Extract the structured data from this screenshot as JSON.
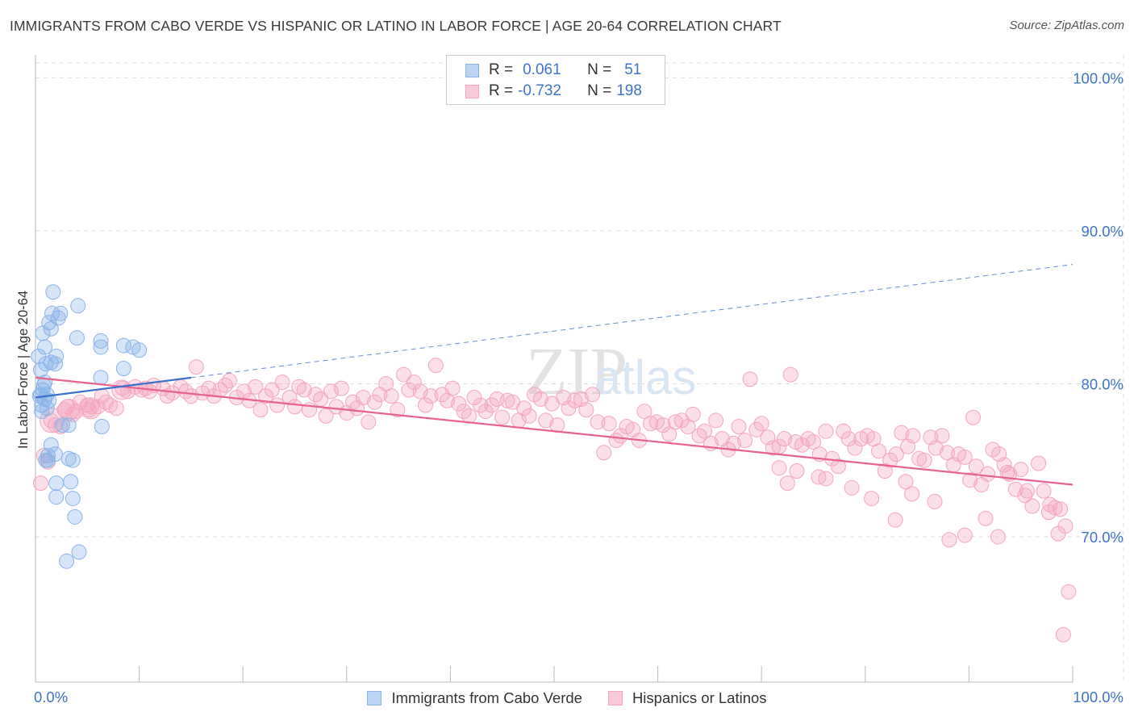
{
  "title": "IMMIGRANTS FROM CABO VERDE VS HISPANIC OR LATINO IN LABOR FORCE | AGE 20-64 CORRELATION CHART",
  "source": "Source: ZipAtlas.com",
  "watermark": "ZIPatlas",
  "colors": {
    "blue": "#8ab4e8",
    "blue_line": "#3a72cc",
    "pink": "#f4a6bf",
    "pink_line": "#e8628f",
    "axis_text": "#3f74c9",
    "grid": "#dddddd"
  },
  "legend": {
    "rows": [
      {
        "r_label": "R =",
        "r_value": "0.061",
        "n_label": "N =",
        "n_value": "51"
      },
      {
        "r_label": "R =",
        "r_value": "-0.732",
        "n_label": "N =",
        "n_value": "198"
      }
    ]
  },
  "bottom_legend": [
    "Immigrants from Cabo Verde",
    "Hispanics or Latinos"
  ],
  "chart_data": {
    "type": "scatter",
    "title": "IMMIGRANTS FROM CABO VERDE VS HISPANIC OR LATINO IN LABOR FORCE | AGE 20-64 CORRELATION CHART",
    "xlabel": "",
    "ylabel": "In Labor Force | Age 20-64",
    "xlim": [
      0,
      100
    ],
    "ylim": [
      60.5,
      101.5
    ],
    "x_tick_labels": [
      "0.0%",
      "100.0%"
    ],
    "y_ticks": [
      70,
      80,
      90,
      100
    ],
    "y_tick_labels": [
      "70.0%",
      "80.0%",
      "90.0%",
      "100.0%"
    ],
    "series": [
      {
        "name": "Immigrants from Cabo Verde",
        "r": 0.061,
        "n": 51,
        "trend_solid": [
          [
            0,
            79.1
          ],
          [
            15,
            80.4
          ]
        ],
        "trend_dashed": [
          [
            15,
            80.4
          ],
          [
            100,
            87.8
          ]
        ],
        "points": [
          [
            0.3,
            81.8
          ],
          [
            0.5,
            80.9
          ],
          [
            0.7,
            79.6
          ],
          [
            0.8,
            79.9
          ],
          [
            0.5,
            79.3
          ],
          [
            0.9,
            79.0
          ],
          [
            1.1,
            78.4
          ],
          [
            0.6,
            78.6
          ],
          [
            1.0,
            81.3
          ],
          [
            1.5,
            81.4
          ],
          [
            1.9,
            81.3
          ],
          [
            2.0,
            81.8
          ],
          [
            0.9,
            82.4
          ],
          [
            0.7,
            83.3
          ],
          [
            1.5,
            83.6
          ],
          [
            1.3,
            84.0
          ],
          [
            1.6,
            84.6
          ],
          [
            2.2,
            84.3
          ],
          [
            2.4,
            84.6
          ],
          [
            1.7,
            86.0
          ],
          [
            4.1,
            85.1
          ],
          [
            4.0,
            83.0
          ],
          [
            6.3,
            82.8
          ],
          [
            6.3,
            82.4
          ],
          [
            8.5,
            82.5
          ],
          [
            9.4,
            82.4
          ],
          [
            10.0,
            82.2
          ],
          [
            8.5,
            81.0
          ],
          [
            6.3,
            80.4
          ],
          [
            1.5,
            76.0
          ],
          [
            1.9,
            75.4
          ],
          [
            1.2,
            75.3
          ],
          [
            1.2,
            75.0
          ],
          [
            2.6,
            77.3
          ],
          [
            3.2,
            77.3
          ],
          [
            6.4,
            77.2
          ],
          [
            1.0,
            75.0
          ],
          [
            3.2,
            75.1
          ],
          [
            3.6,
            75.0
          ],
          [
            2.0,
            73.5
          ],
          [
            3.4,
            73.6
          ],
          [
            2.0,
            72.6
          ],
          [
            3.6,
            72.5
          ],
          [
            3.8,
            71.3
          ],
          [
            4.2,
            69.0
          ],
          [
            3.0,
            68.4
          ],
          [
            0.9,
            80.1
          ],
          [
            1.3,
            78.9
          ],
          [
            1.1,
            79.3
          ],
          [
            0.4,
            79.2
          ],
          [
            0.6,
            78.2
          ]
        ]
      },
      {
        "name": "Hispanics or Latinos",
        "r": -0.732,
        "n": 198,
        "trend_solid": [
          [
            0,
            80.4
          ],
          [
            100,
            73.4
          ]
        ],
        "points": [
          [
            0.5,
            73.5
          ],
          [
            0.8,
            75.3
          ],
          [
            1.2,
            74.9
          ],
          [
            1.5,
            77.6
          ],
          [
            1.9,
            77.3
          ],
          [
            2.4,
            77.2
          ],
          [
            2.8,
            78.3
          ],
          [
            3.1,
            78.5
          ],
          [
            3.6,
            78.0
          ],
          [
            3.9,
            78.2
          ],
          [
            4.3,
            78.8
          ],
          [
            5.0,
            78.6
          ],
          [
            5.2,
            78.3
          ],
          [
            5.4,
            78.5
          ],
          [
            6.0,
            78.5
          ],
          [
            6.4,
            79.2
          ],
          [
            6.8,
            78.8
          ],
          [
            7.2,
            78.6
          ],
          [
            7.8,
            78.4
          ],
          [
            8.4,
            79.7
          ],
          [
            8.9,
            79.5
          ],
          [
            9.6,
            79.8
          ],
          [
            10.2,
            79.6
          ],
          [
            10.6,
            79.7
          ],
          [
            11.0,
            79.5
          ],
          [
            11.4,
            79.9
          ],
          [
            12.3,
            79.7
          ],
          [
            12.7,
            79.2
          ],
          [
            13.2,
            79.4
          ],
          [
            14.0,
            79.8
          ],
          [
            14.5,
            79.5
          ],
          [
            15.0,
            79.2
          ],
          [
            15.5,
            81.1
          ],
          [
            16.1,
            79.4
          ],
          [
            16.7,
            79.7
          ],
          [
            17.2,
            79.2
          ],
          [
            17.8,
            79.6
          ],
          [
            18.3,
            79.9
          ],
          [
            18.7,
            80.2
          ],
          [
            19.4,
            79.1
          ],
          [
            20.1,
            79.5
          ],
          [
            20.6,
            78.9
          ],
          [
            21.2,
            79.8
          ],
          [
            21.7,
            78.3
          ],
          [
            22.2,
            79.2
          ],
          [
            22.8,
            79.6
          ],
          [
            23.3,
            78.6
          ],
          [
            23.8,
            80.1
          ],
          [
            24.5,
            79.1
          ],
          [
            25.0,
            78.5
          ],
          [
            25.4,
            79.8
          ],
          [
            25.9,
            79.6
          ],
          [
            26.4,
            78.3
          ],
          [
            27.0,
            79.3
          ],
          [
            27.5,
            79.0
          ],
          [
            28.0,
            77.9
          ],
          [
            28.5,
            79.5
          ],
          [
            29.0,
            78.5
          ],
          [
            29.5,
            79.7
          ],
          [
            30.0,
            78.1
          ],
          [
            30.6,
            78.8
          ],
          [
            31.0,
            78.4
          ],
          [
            31.6,
            79.1
          ],
          [
            32.1,
            77.5
          ],
          [
            32.7,
            78.8
          ],
          [
            33.2,
            79.3
          ],
          [
            33.8,
            80.0
          ],
          [
            34.3,
            79.2
          ],
          [
            34.9,
            78.3
          ],
          [
            35.5,
            80.6
          ],
          [
            36.0,
            79.6
          ],
          [
            36.5,
            80.1
          ],
          [
            37.1,
            79.5
          ],
          [
            37.6,
            78.6
          ],
          [
            38.1,
            79.2
          ],
          [
            38.6,
            81.2
          ],
          [
            39.2,
            79.3
          ],
          [
            39.7,
            78.9
          ],
          [
            40.2,
            79.7
          ],
          [
            40.8,
            78.7
          ],
          [
            41.3,
            78.2
          ],
          [
            41.8,
            77.9
          ],
          [
            42.3,
            79.1
          ],
          [
            42.9,
            78.6
          ],
          [
            43.4,
            78.2
          ],
          [
            44.0,
            78.6
          ],
          [
            44.5,
            79.0
          ],
          [
            45.0,
            77.8
          ],
          [
            45.5,
            78.9
          ],
          [
            46.0,
            78.8
          ],
          [
            46.6,
            77.6
          ],
          [
            47.1,
            78.4
          ],
          [
            47.6,
            77.9
          ],
          [
            48.1,
            79.3
          ],
          [
            48.7,
            79.0
          ],
          [
            49.2,
            77.6
          ],
          [
            49.8,
            78.7
          ],
          [
            50.3,
            77.3
          ],
          [
            50.9,
            79.1
          ],
          [
            51.4,
            78.4
          ],
          [
            52.0,
            78.9
          ],
          [
            52.6,
            79.0
          ],
          [
            53.1,
            78.3
          ],
          [
            53.7,
            79.3
          ],
          [
            54.2,
            77.5
          ],
          [
            54.8,
            75.5
          ],
          [
            55.3,
            77.4
          ],
          [
            56.0,
            76.3
          ],
          [
            56.4,
            76.6
          ],
          [
            57.0,
            77.2
          ],
          [
            57.6,
            77.0
          ],
          [
            58.2,
            76.3
          ],
          [
            58.7,
            78.2
          ],
          [
            59.3,
            77.4
          ],
          [
            59.9,
            77.5
          ],
          [
            60.5,
            77.3
          ],
          [
            61.1,
            76.7
          ],
          [
            61.7,
            77.5
          ],
          [
            62.3,
            77.6
          ],
          [
            62.9,
            77.2
          ],
          [
            63.4,
            78.0
          ],
          [
            64.0,
            76.6
          ],
          [
            64.5,
            76.9
          ],
          [
            65.1,
            76.1
          ],
          [
            65.6,
            77.6
          ],
          [
            66.2,
            76.4
          ],
          [
            66.8,
            75.7
          ],
          [
            67.3,
            76.1
          ],
          [
            67.8,
            77.2
          ],
          [
            68.4,
            76.3
          ],
          [
            68.9,
            80.3
          ],
          [
            69.5,
            77.0
          ],
          [
            70.0,
            77.4
          ],
          [
            70.6,
            76.5
          ],
          [
            71.1,
            75.8
          ],
          [
            71.7,
            75.9
          ],
          [
            72.2,
            76.4
          ],
          [
            72.8,
            80.6
          ],
          [
            73.3,
            76.2
          ],
          [
            73.9,
            76.0
          ],
          [
            74.5,
            76.4
          ],
          [
            75.0,
            76.2
          ],
          [
            75.6,
            75.4
          ],
          [
            76.2,
            76.9
          ],
          [
            76.8,
            75.1
          ],
          [
            77.4,
            74.6
          ],
          [
            77.9,
            76.9
          ],
          [
            78.4,
            76.4
          ],
          [
            79.0,
            75.8
          ],
          [
            79.6,
            76.4
          ],
          [
            80.2,
            76.6
          ],
          [
            80.8,
            76.4
          ],
          [
            81.3,
            75.6
          ],
          [
            81.9,
            74.3
          ],
          [
            82.4,
            75.0
          ],
          [
            83.0,
            75.4
          ],
          [
            83.5,
            76.8
          ],
          [
            84.1,
            75.9
          ],
          [
            84.6,
            76.6
          ],
          [
            85.2,
            75.1
          ],
          [
            85.7,
            75.0
          ],
          [
            86.3,
            76.5
          ],
          [
            86.8,
            75.8
          ],
          [
            87.4,
            76.6
          ],
          [
            87.9,
            75.5
          ],
          [
            88.5,
            74.7
          ],
          [
            89.0,
            75.4
          ],
          [
            89.6,
            75.2
          ],
          [
            90.1,
            73.7
          ],
          [
            90.7,
            74.6
          ],
          [
            91.2,
            73.4
          ],
          [
            91.8,
            74.1
          ],
          [
            92.3,
            75.7
          ],
          [
            92.9,
            75.4
          ],
          [
            93.4,
            74.7
          ],
          [
            93.9,
            74.1
          ],
          [
            94.5,
            73.1
          ],
          [
            95.0,
            74.4
          ],
          [
            95.6,
            73.0
          ],
          [
            96.1,
            72.0
          ],
          [
            96.7,
            74.8
          ],
          [
            97.2,
            73.0
          ],
          [
            97.8,
            72.1
          ],
          [
            98.3,
            71.9
          ],
          [
            98.8,
            71.8
          ],
          [
            99.3,
            70.7
          ],
          [
            99.6,
            66.4
          ],
          [
            99.1,
            63.6
          ],
          [
            98.6,
            70.2
          ],
          [
            97.7,
            71.6
          ],
          [
            95.4,
            72.7
          ],
          [
            93.7,
            74.2
          ],
          [
            91.6,
            71.2
          ],
          [
            89.6,
            70.1
          ],
          [
            88.1,
            69.8
          ],
          [
            86.7,
            72.3
          ],
          [
            84.5,
            72.8
          ],
          [
            83.9,
            73.6
          ],
          [
            82.9,
            71.1
          ],
          [
            80.6,
            72.5
          ],
          [
            78.7,
            73.2
          ],
          [
            76.2,
            73.8
          ],
          [
            75.5,
            73.9
          ],
          [
            73.4,
            74.3
          ],
          [
            72.5,
            73.5
          ],
          [
            71.7,
            74.5
          ],
          [
            92.8,
            70.0
          ],
          [
            90.4,
            77.8
          ]
        ]
      }
    ]
  }
}
